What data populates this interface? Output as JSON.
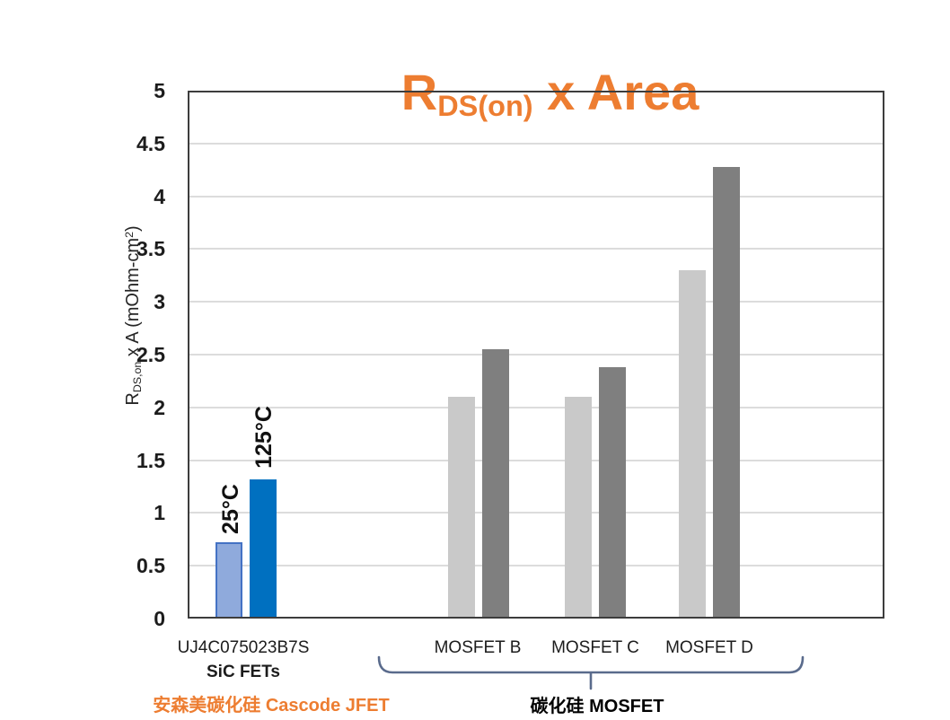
{
  "title": {
    "prefix": "R",
    "subscript": "DS(on)",
    "suffix": " x Area",
    "color": "#ED7D31"
  },
  "chart_data": {
    "type": "bar",
    "title": "R_DS(on) x Area",
    "ylabel": "R_DS,on x A (mOhm-cm2)",
    "ylabel_parts": {
      "prefix": "R",
      "subscript": "DS,on",
      "middle": " x A (mOhm-cm",
      "superscript": "2",
      "close": ")"
    },
    "ylim": [
      0,
      5
    ],
    "ytick_step": 0.5,
    "grid": "horizontal",
    "legend": "none",
    "categories": [
      "UJ4C075023B7S SiC FETs",
      "MOSFET B",
      "MOSFET C",
      "MOSFET D"
    ],
    "series": [
      {
        "name": "25°C",
        "values": [
          0.72,
          2.1,
          2.1,
          3.3
        ],
        "fills": [
          "#8FAADC",
          "#C9C9C9",
          "#C9C9C9",
          "#C9C9C9"
        ],
        "strokes": [
          "#4472C4",
          "none",
          "none",
          "none"
        ]
      },
      {
        "name": "125°C",
        "values": [
          1.32,
          2.55,
          2.38,
          4.28
        ],
        "fills": [
          "#0070C0",
          "#7F7F7F",
          "#7F7F7F",
          "#7F7F7F"
        ],
        "strokes": [
          "none",
          "none",
          "none",
          "none"
        ]
      }
    ]
  },
  "x_axis": {
    "group1_line1": "UJ4C075023B7S",
    "group1_line2": "SiC FETs",
    "label_b": "MOSFET B",
    "label_c": "MOSFET C",
    "label_d": "MOSFET D"
  },
  "annotations": {
    "jfet_note": "安森美碳化硅 Cascode JFET",
    "mosfet_note": "碳化硅 MOSFET",
    "orange_color": "#ED7D31",
    "brace_color": "#5A6B8C"
  },
  "colors": {
    "gridline": "#DCDCDC",
    "plot_border": "#3D3D3D",
    "light_blue": "#8FAADC",
    "blue_border": "#4472C4",
    "dark_blue": "#0070C0",
    "light_gray": "#C9C9C9",
    "dark_gray": "#7F7F7F"
  }
}
